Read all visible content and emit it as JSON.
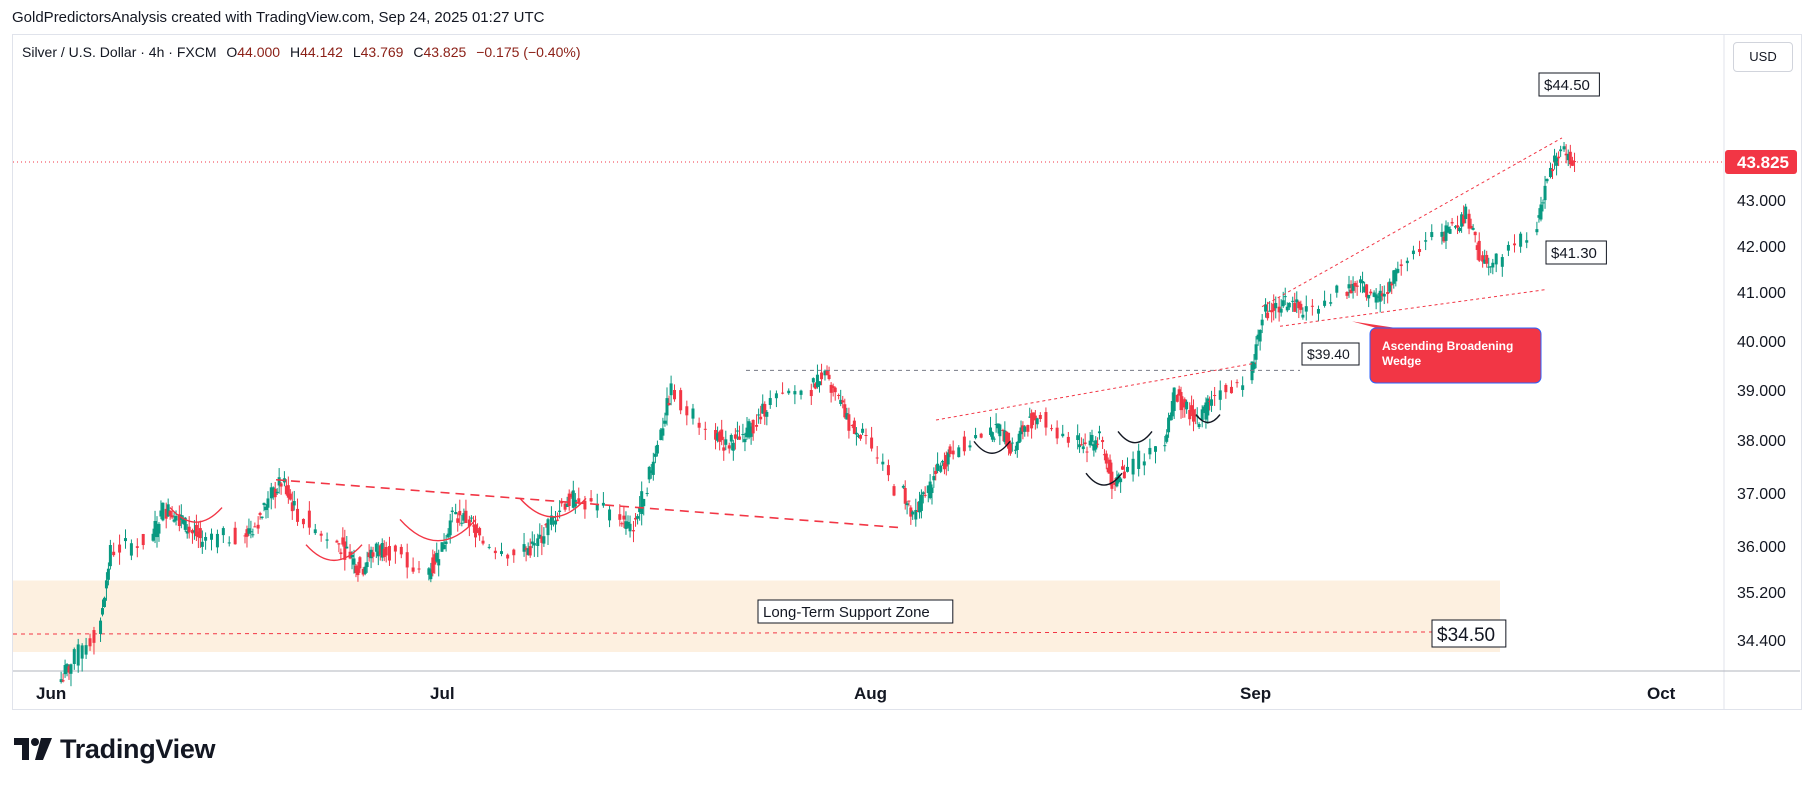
{
  "header": {
    "caption": "GoldPredictorsAnalysis created with TradingView.com, Sep 24, 2025 01:27 UTC"
  },
  "legend": {
    "symbol": "Silver / U.S. Dollar · 4h · FXCM",
    "open_label": "O",
    "open": "44.000",
    "high_label": "H",
    "high": "44.142",
    "low_label": "L",
    "low": "43.769",
    "close_label": "C",
    "close": "43.825",
    "change": "−0.175 (−0.40%)"
  },
  "currency_button": "USD",
  "brand": {
    "name": "TradingView",
    "logo_icon": "tradingview-logo-icon"
  },
  "colors": {
    "bull_candle": "#089981",
    "bear_candle": "#f23645",
    "annotation_red": "#f23645",
    "support_zone": "#fdf0e0",
    "price_badge": "#f23645"
  },
  "chart_data": {
    "type": "candlestick",
    "timeframe": "4h",
    "y_axis": {
      "ticks": [
        34.4,
        35.2,
        36.0,
        37.0,
        38.0,
        39.0,
        40.0,
        41.0,
        42.0,
        43.0
      ],
      "tick_labels": [
        "34.400",
        "35.200",
        "36.000",
        "37.000",
        "38.000",
        "39.000",
        "40.000",
        "41.000",
        "42.000",
        "43.000"
      ],
      "scale": "log"
    },
    "x_axis": {
      "labels": [
        "Jun",
        "Jul",
        "Aug",
        "Sep",
        "Oct"
      ]
    },
    "last_price": 43.825,
    "last_price_label": "43.825",
    "close_path": [
      [
        "2025-06-02",
        34.0
      ],
      [
        "2025-06-03",
        34.5
      ],
      [
        "2025-06-05",
        35.9
      ],
      [
        "2025-06-06",
        36.1
      ],
      [
        "2025-06-09",
        36.7
      ],
      [
        "2025-06-10",
        36.6
      ],
      [
        "2025-06-11",
        36.3
      ],
      [
        "2025-06-12",
        36.1
      ],
      [
        "2025-06-13",
        36.2
      ],
      [
        "2025-06-16",
        36.4
      ],
      [
        "2025-06-17",
        36.9
      ],
      [
        "2025-06-18",
        37.2
      ],
      [
        "2025-06-19",
        36.7
      ],
      [
        "2025-06-20",
        36.1
      ],
      [
        "2025-06-23",
        35.9
      ],
      [
        "2025-06-24",
        35.6
      ],
      [
        "2025-06-25",
        35.9
      ],
      [
        "2025-06-26",
        36.0
      ],
      [
        "2025-06-27",
        35.5
      ],
      [
        "2025-06-30",
        35.9
      ],
      [
        "2025-07-01",
        36.6
      ],
      [
        "2025-07-02",
        36.5
      ],
      [
        "2025-07-03",
        36.1
      ],
      [
        "2025-07-04",
        35.9
      ],
      [
        "2025-07-07",
        36.0
      ],
      [
        "2025-07-08",
        36.4
      ],
      [
        "2025-07-09",
        36.8
      ],
      [
        "2025-07-10",
        36.9
      ],
      [
        "2025-07-11",
        36.6
      ],
      [
        "2025-07-14",
        36.3
      ],
      [
        "2025-07-15",
        37.0
      ],
      [
        "2025-07-16",
        38.0
      ],
      [
        "2025-07-17",
        39.0
      ],
      [
        "2025-07-18",
        38.2
      ],
      [
        "2025-07-21",
        37.9
      ],
      [
        "2025-07-22",
        38.1
      ],
      [
        "2025-07-23",
        38.3
      ],
      [
        "2025-07-24",
        38.7
      ],
      [
        "2025-07-25",
        39.0
      ],
      [
        "2025-07-28",
        39.3
      ],
      [
        "2025-07-29",
        38.9
      ],
      [
        "2025-07-30",
        38.3
      ],
      [
        "2025-07-31",
        38.1
      ],
      [
        "2025-08-01",
        37.1
      ],
      [
        "2025-08-04",
        36.5
      ],
      [
        "2025-08-05",
        37.0
      ],
      [
        "2025-08-06",
        37.4
      ],
      [
        "2025-08-07",
        37.8
      ],
      [
        "2025-08-08",
        38.1
      ],
      [
        "2025-08-11",
        38.2
      ],
      [
        "2025-08-12",
        37.8
      ],
      [
        "2025-08-13",
        38.3
      ],
      [
        "2025-08-14",
        38.5
      ],
      [
        "2025-08-15",
        38.0
      ],
      [
        "2025-08-18",
        37.9
      ],
      [
        "2025-08-19",
        38.0
      ],
      [
        "2025-08-20",
        37.2
      ],
      [
        "2025-08-21",
        37.4
      ],
      [
        "2025-08-22",
        37.9
      ],
      [
        "2025-08-25",
        38.9
      ],
      [
        "2025-08-26",
        38.6
      ],
      [
        "2025-08-27",
        38.4
      ],
      [
        "2025-08-28",
        38.9
      ],
      [
        "2025-08-29",
        39.2
      ],
      [
        "2025-09-01",
        40.6
      ],
      [
        "2025-09-02",
        40.7
      ],
      [
        "2025-09-03",
        40.8
      ],
      [
        "2025-09-04",
        40.6
      ],
      [
        "2025-09-05",
        41.0
      ],
      [
        "2025-09-08",
        41.2
      ],
      [
        "2025-09-09",
        40.9
      ],
      [
        "2025-09-10",
        41.0
      ],
      [
        "2025-09-11",
        41.6
      ],
      [
        "2025-09-12",
        42.2
      ],
      [
        "2025-09-15",
        42.4
      ],
      [
        "2025-09-16",
        42.7
      ],
      [
        "2025-09-17",
        41.8
      ],
      [
        "2025-09-18",
        41.6
      ],
      [
        "2025-09-19",
        42.3
      ],
      [
        "2025-09-22",
        43.5
      ],
      [
        "2025-09-23",
        44.1
      ],
      [
        "2025-09-24",
        43.825
      ]
    ],
    "annotations": {
      "resistance_top": "$44.50",
      "support_lower": "$41.30",
      "breakout_level": "$39.40",
      "pattern_label": "Ascending Broadening Wedge",
      "zone_label": "Long-Term Support Zone",
      "zone_level": "$34.50"
    },
    "levels": {
      "breakout": 39.4,
      "zone_level": 34.5,
      "zone_range": [
        34.2,
        35.4
      ],
      "wedge_upper": [
        [
          40.75,
          44.4
        ]
      ],
      "wedge_lower": [
        [
          40.3,
          41.1
        ]
      ]
    }
  }
}
